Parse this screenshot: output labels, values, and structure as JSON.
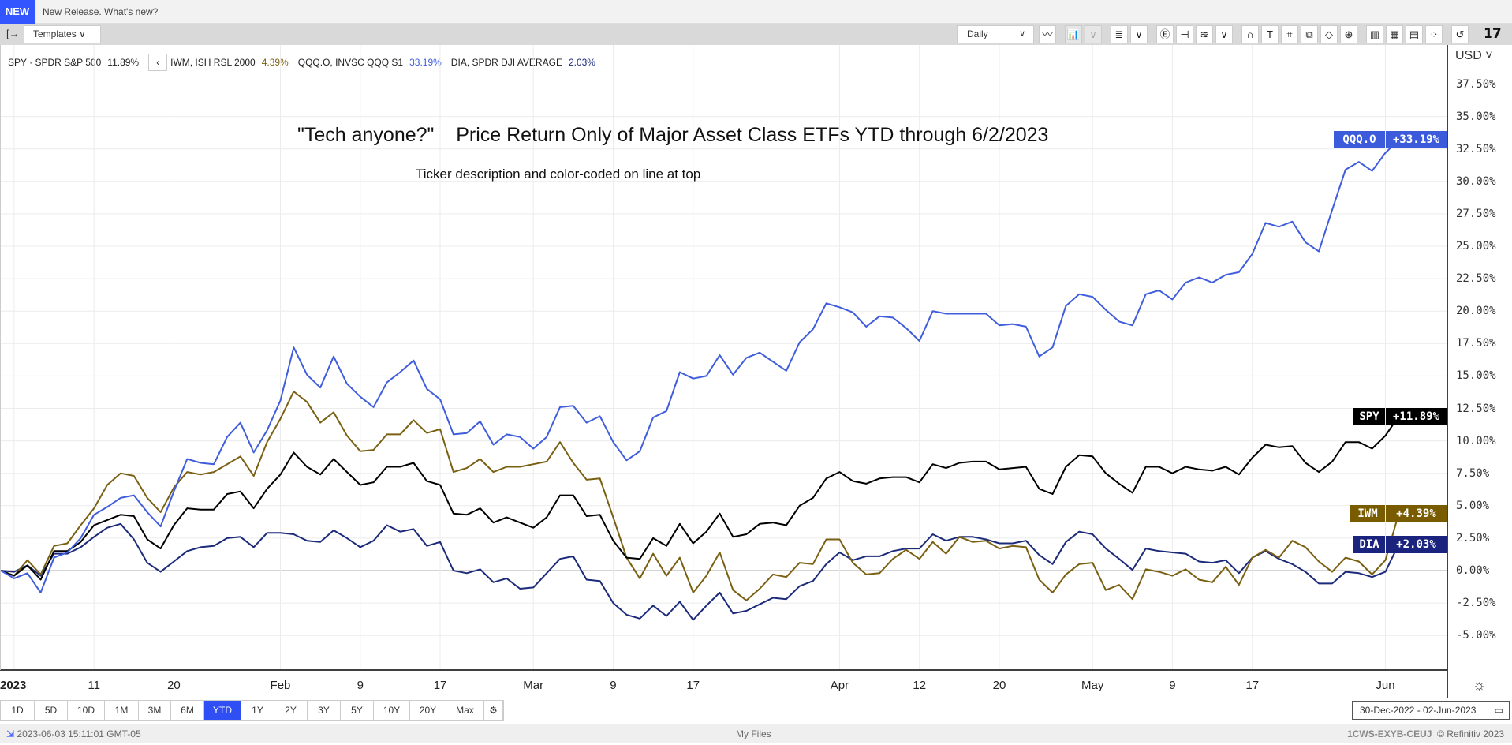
{
  "banner": {
    "badge": "NEW",
    "text": "New Release. What's new?"
  },
  "toolbar": {
    "sidebar_icon": "[→",
    "templates_label": "Templates ∨",
    "interval": "Daily",
    "interval_chevron": "∨",
    "tools": [
      {
        "name": "line-chart-icon",
        "glyph": "〰"
      },
      {
        "name": "chart-type-icon",
        "glyph": "📊",
        "disabled": true
      },
      {
        "name": "chart-type-chevron-icon",
        "glyph": "∨",
        "disabled": true
      },
      {
        "name": "list-icon",
        "glyph": "≣"
      },
      {
        "name": "list-chevron-icon",
        "glyph": "∨"
      },
      {
        "name": "events-icon",
        "glyph": "Ⓔ"
      },
      {
        "name": "crosshair-icon",
        "glyph": "⊣"
      },
      {
        "name": "indicators-icon",
        "glyph": "≋"
      },
      {
        "name": "indicators-chevron-icon",
        "glyph": "∨"
      },
      {
        "name": "magnet-icon",
        "glyph": "∩"
      },
      {
        "name": "text-icon",
        "glyph": "T"
      },
      {
        "name": "shape-icon",
        "glyph": "⌗"
      },
      {
        "name": "move-icon",
        "glyph": "⧉"
      },
      {
        "name": "draw-icon",
        "glyph": "◇"
      },
      {
        "name": "zoom-icon",
        "glyph": "⊕"
      },
      {
        "name": "export-chart-icon",
        "glyph": "▥"
      },
      {
        "name": "table-icon",
        "glyph": "▦"
      },
      {
        "name": "news-icon",
        "glyph": "▤"
      },
      {
        "name": "scatter-icon",
        "glyph": "⁘"
      },
      {
        "name": "undo-icon",
        "glyph": "↺"
      }
    ],
    "logo": "TV"
  },
  "legend": [
    {
      "label": "SPY · SPDR S&P 500",
      "value": "11.89%",
      "color": "#222222"
    },
    {
      "label": "IWM, ISH RSL 2000",
      "value": "4.39%",
      "color": "#7a6012"
    },
    {
      "label": "QQQ.O, INVSC QQQ S1",
      "value": "33.19%",
      "color": "#3f5ddc"
    },
    {
      "label": "DIA, SPDR DJI AVERAGE",
      "value": "2.03%",
      "color": "#1c2a7a"
    }
  ],
  "legend_back": "‹",
  "currency": "USD ˅",
  "chart_data": {
    "type": "line",
    "title": "\"Tech anyone?\"    Price Return Only of Major Asset Class ETFs YTD through 6/2/2023",
    "subtitle": "Ticker description and color-coded on line at top",
    "xlabel": "",
    "ylabel": "",
    "ylim": [
      -7.5,
      40
    ],
    "y_ticks": [
      {
        "v": 37.5,
        "label": "37.50%"
      },
      {
        "v": 35,
        "label": "35.00%"
      },
      {
        "v": 32.5,
        "label": "32.50%"
      },
      {
        "v": 30,
        "label": "30.00%"
      },
      {
        "v": 27.5,
        "label": "27.50%"
      },
      {
        "v": 25,
        "label": "25.00%"
      },
      {
        "v": 22.5,
        "label": "22.50%"
      },
      {
        "v": 20,
        "label": "20.00%"
      },
      {
        "v": 17.5,
        "label": "17.50%"
      },
      {
        "v": 15,
        "label": "15.00%"
      },
      {
        "v": 12.5,
        "label": "12.50%"
      },
      {
        "v": 10,
        "label": "10.00%"
      },
      {
        "v": 7.5,
        "label": "7.50%"
      },
      {
        "v": 5,
        "label": "5.00%"
      },
      {
        "v": 2.5,
        "label": "2.50%"
      },
      {
        "v": 0,
        "label": "0.00%"
      },
      {
        "v": -2.5,
        "label": "-2.50%"
      },
      {
        "v": -5,
        "label": "-5.00%"
      }
    ],
    "x_ticks": [
      {
        "i": 1,
        "label": "2023"
      },
      {
        "i": 7,
        "label": "11"
      },
      {
        "i": 13,
        "label": "20"
      },
      {
        "i": 21,
        "label": "Feb"
      },
      {
        "i": 27,
        "label": "9"
      },
      {
        "i": 33,
        "label": "17"
      },
      {
        "i": 40,
        "label": "Mar"
      },
      {
        "i": 46,
        "label": "9"
      },
      {
        "i": 52,
        "label": "17"
      },
      {
        "i": 63,
        "label": "Apr"
      },
      {
        "i": 69,
        "label": "12"
      },
      {
        "i": 75,
        "label": "20"
      },
      {
        "i": 82,
        "label": "May"
      },
      {
        "i": 88,
        "label": "9"
      },
      {
        "i": 94,
        "label": "17"
      },
      {
        "i": 104,
        "label": "Jun"
      }
    ],
    "x_range": [
      "30-Dec-2022",
      "02-Jun-2023"
    ],
    "series": [
      {
        "name": "QQQ.O",
        "badge": "+33.19%",
        "color": "#3f5ddc",
        "values": [
          0,
          -0.6,
          -0.2,
          -1.7,
          1.0,
          1.4,
          2.5,
          4.3,
          4.9,
          5.6,
          5.8,
          4.5,
          3.4,
          6.1,
          8.6,
          8.3,
          8.2,
          10.3,
          11.4,
          9.1,
          10.8,
          13.1,
          17.2,
          15.1,
          14.1,
          16.5,
          14.4,
          13.4,
          12.6,
          14.5,
          15.3,
          16.2,
          14.0,
          13.2,
          10.5,
          10.6,
          11.5,
          9.7,
          10.5,
          10.3,
          9.4,
          10.3,
          12.6,
          12.7,
          11.4,
          11.9,
          9.9,
          8.5,
          9.2,
          11.8,
          12.3,
          15.3,
          14.8,
          15.0,
          16.6,
          15.1,
          16.4,
          16.8,
          16.1,
          15.4,
          17.6,
          18.6,
          20.6,
          20.3,
          19.9,
          18.8,
          19.6,
          19.5,
          18.7,
          17.7,
          20.0,
          19.8,
          19.8,
          19.8,
          19.8,
          18.9,
          19.0,
          18.8,
          16.5,
          17.2,
          20.4,
          21.3,
          21.1,
          20.1,
          19.2,
          18.9,
          21.3,
          21.6,
          20.9,
          22.2,
          22.6,
          22.2,
          22.8,
          23.0,
          24.4,
          26.8,
          26.5,
          26.9,
          25.3,
          24.6,
          27.8,
          30.9,
          31.5,
          30.8,
          32.2,
          33.19
        ]
      },
      {
        "name": "SPY",
        "badge": "+11.89%",
        "color": "#000000",
        "values": [
          0,
          -0.4,
          0.4,
          -0.7,
          1.5,
          1.5,
          2.2,
          3.5,
          3.9,
          4.3,
          4.2,
          2.4,
          1.7,
          3.5,
          4.8,
          4.7,
          4.7,
          5.9,
          6.1,
          4.8,
          6.3,
          7.4,
          9.1,
          8.0,
          7.4,
          8.6,
          7.6,
          6.6,
          6.8,
          8.0,
          8.0,
          8.3,
          6.9,
          6.6,
          4.4,
          4.3,
          4.8,
          3.7,
          4.1,
          3.7,
          3.3,
          4.1,
          5.8,
          5.8,
          4.2,
          4.3,
          2.3,
          1.0,
          0.9,
          2.5,
          1.9,
          3.6,
          2.1,
          3.0,
          4.4,
          2.6,
          2.8,
          3.6,
          3.7,
          3.5,
          5.0,
          5.6,
          7.1,
          7.6,
          6.9,
          6.7,
          7.1,
          7.2,
          7.2,
          6.8,
          8.2,
          7.9,
          8.3,
          8.4,
          8.4,
          7.8,
          7.9,
          8.0,
          6.3,
          5.9,
          8.0,
          8.9,
          8.8,
          7.5,
          6.7,
          6.0,
          8.0,
          8.0,
          7.5,
          8.0,
          7.8,
          7.7,
          8.0,
          7.4,
          8.7,
          9.7,
          9.5,
          9.6,
          8.3,
          7.6,
          8.4,
          9.9,
          9.9,
          9.4,
          10.4,
          11.89
        ]
      },
      {
        "name": "IWM",
        "badge": "+4.39%",
        "color": "#7a6012",
        "values": [
          0,
          -0.4,
          0.8,
          -0.3,
          1.9,
          2.1,
          3.5,
          4.8,
          6.6,
          7.5,
          7.3,
          5.6,
          4.5,
          6.4,
          7.6,
          7.4,
          7.6,
          8.2,
          8.8,
          7.3,
          9.9,
          11.7,
          13.8,
          13.0,
          11.4,
          12.2,
          10.4,
          9.2,
          9.3,
          10.5,
          10.5,
          11.6,
          10.6,
          10.9,
          7.6,
          7.9,
          8.6,
          7.6,
          8.0,
          8.0,
          8.2,
          8.4,
          9.9,
          8.3,
          7.0,
          7.1,
          4.1,
          1.0,
          -0.6,
          1.3,
          -0.4,
          1.0,
          -1.7,
          -0.4,
          1.4,
          -1.5,
          -2.3,
          -1.4,
          -0.3,
          -0.5,
          0.6,
          0.5,
          2.4,
          2.4,
          0.6,
          -0.3,
          -0.2,
          0.9,
          1.6,
          0.9,
          2.2,
          1.3,
          2.6,
          2.2,
          2.3,
          1.7,
          1.9,
          1.8,
          -0.7,
          -1.7,
          -0.3,
          0.5,
          0.6,
          -1.5,
          -1.1,
          -2.2,
          0.1,
          -0.1,
          -0.4,
          0.1,
          -0.7,
          -0.9,
          0.3,
          -1.1,
          1.0,
          1.6,
          1.0,
          2.3,
          1.8,
          0.7,
          -0.1,
          1.0,
          0.7,
          -0.3,
          0.8,
          4.39
        ]
      },
      {
        "name": "DIA",
        "badge": "+2.03%",
        "color": "#1c2a7a",
        "values": [
          0,
          -0.1,
          0.4,
          -0.4,
          1.3,
          1.3,
          1.8,
          2.6,
          3.3,
          3.6,
          2.4,
          0.6,
          -0.1,
          0.7,
          1.5,
          1.8,
          1.9,
          2.5,
          2.6,
          1.8,
          2.9,
          2.9,
          2.8,
          2.3,
          2.2,
          3.1,
          2.5,
          1.8,
          2.3,
          3.5,
          3.0,
          3.2,
          1.9,
          2.2,
          0.0,
          -0.2,
          0.1,
          -0.9,
          -0.6,
          -1.4,
          -1.3,
          -0.2,
          0.9,
          1.1,
          -0.7,
          -0.8,
          -2.5,
          -3.4,
          -3.7,
          -2.7,
          -3.5,
          -2.4,
          -3.8,
          -2.7,
          -1.7,
          -3.3,
          -3.1,
          -2.6,
          -2.1,
          -2.2,
          -1.2,
          -0.8,
          0.5,
          1.4,
          0.8,
          1.1,
          1.1,
          1.5,
          1.7,
          1.7,
          2.8,
          2.3,
          2.6,
          2.6,
          2.4,
          2.1,
          2.1,
          2.3,
          1.2,
          0.5,
          2.2,
          3.0,
          2.8,
          1.7,
          0.9,
          0.05,
          1.7,
          1.5,
          1.4,
          1.3,
          0.7,
          0.6,
          0.8,
          -0.2,
          1.0,
          1.5,
          0.9,
          0.5,
          -0.1,
          -1.0,
          -1.0,
          -0.1,
          -0.2,
          -0.5,
          -0.1,
          2.03
        ]
      }
    ]
  },
  "settings_icon": "☼",
  "ranges": [
    {
      "label": "1D"
    },
    {
      "label": "5D"
    },
    {
      "label": "10D"
    },
    {
      "label": "1M"
    },
    {
      "label": "3M"
    },
    {
      "label": "6M"
    },
    {
      "label": "YTD",
      "active": true
    },
    {
      "label": "1Y"
    },
    {
      "label": "2Y"
    },
    {
      "label": "3Y"
    },
    {
      "label": "5Y"
    },
    {
      "label": "10Y"
    },
    {
      "label": "20Y"
    },
    {
      "label": "Max"
    }
  ],
  "range_settings_icon": "⚙",
  "date_range": {
    "text": "30-Dec-2022  -  02-Jun-2023",
    "icon": "▭"
  },
  "status": {
    "timestamp": "2023-06-03 15:11:01 GMT-05",
    "center": "My Files",
    "id": "1CWS-EXYB-CEUJ",
    "copyright": "© Refinitiv 2023",
    "icon": "⇲"
  }
}
